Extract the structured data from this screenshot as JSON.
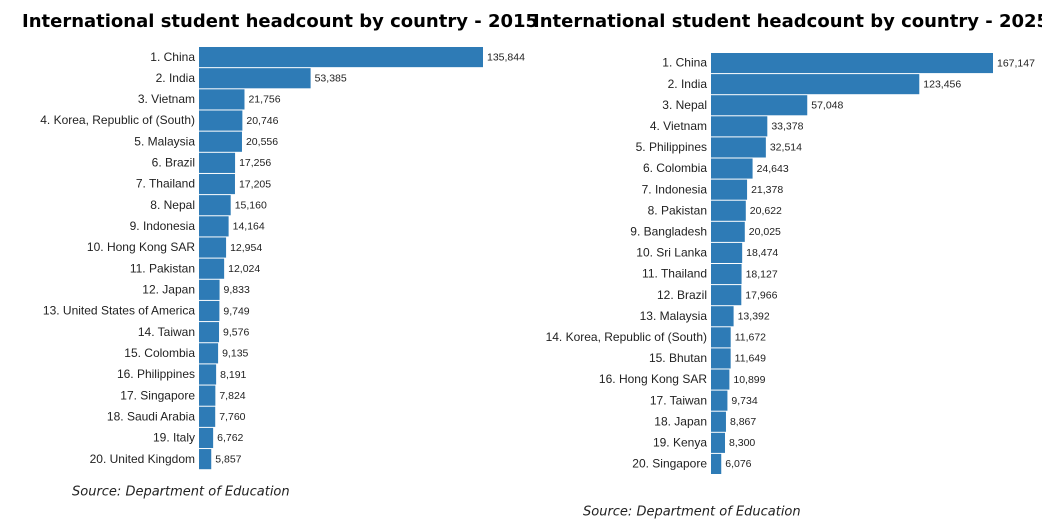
{
  "chart_data": [
    {
      "type": "bar",
      "orientation": "horizontal",
      "title": "International student headcount by country - 2015",
      "color": "#2e7bb6",
      "categories": [
        "1. China",
        "2. India",
        "3. Vietnam",
        "4. Korea, Republic of (South)",
        "5. Malaysia",
        "6. Brazil",
        "7. Thailand",
        "8. Nepal",
        "9. Indonesia",
        "10. Hong Kong SAR",
        "11. Pakistan",
        "12. Japan",
        "13. United States of America",
        "14. Taiwan",
        "15. Colombia",
        "16. Philippines",
        "17. Singapore",
        "18. Saudi Arabia",
        "19. Italy",
        "20. United Kingdom"
      ],
      "values": [
        135844,
        53385,
        21756,
        20746,
        20556,
        17256,
        17205,
        15160,
        14164,
        12954,
        12024,
        9833,
        9749,
        9576,
        9135,
        8191,
        7824,
        7760,
        6762,
        5857
      ],
      "value_labels": [
        "135,844",
        "53,385",
        "21,756",
        "20,746",
        "20,556",
        "17,256",
        "17,205",
        "15,160",
        "14,164",
        "12,954",
        "12,024",
        "9,833",
        "9,749",
        "9,576",
        "9,135",
        "8,191",
        "7,824",
        "7,760",
        "6,762",
        "5,857"
      ],
      "source": "Source: Department of Education"
    },
    {
      "type": "bar",
      "orientation": "horizontal",
      "title": "International student headcount by country - 2025",
      "color": "#2e7bb6",
      "categories": [
        "1. China",
        "2. India",
        "3. Nepal",
        "4. Vietnam",
        "5. Philippines",
        "6. Colombia",
        "7. Indonesia",
        "8. Pakistan",
        "9. Bangladesh",
        "10. Sri Lanka",
        "11. Thailand",
        "12. Brazil",
        "13. Malaysia",
        "14. Korea, Republic of (South)",
        "15. Bhutan",
        "16. Hong Kong SAR",
        "17. Taiwan",
        "18. Japan",
        "19. Kenya",
        "20. Singapore"
      ],
      "values": [
        167147,
        123456,
        57048,
        33378,
        32514,
        24643,
        21378,
        20622,
        20025,
        18474,
        18127,
        17966,
        13392,
        11672,
        11649,
        10899,
        9734,
        8867,
        8300,
        6076
      ],
      "value_labels": [
        "167,147",
        "123,456",
        "57,048",
        "33,378",
        "32,514",
        "24,643",
        "21,378",
        "20,622",
        "20,025",
        "18,474",
        "18,127",
        "17,966",
        "13,392",
        "11,672",
        "11,649",
        "10,899",
        "9,734",
        "8,867",
        "8,300",
        "6,076"
      ],
      "source": "Source: Department of Education"
    }
  ]
}
